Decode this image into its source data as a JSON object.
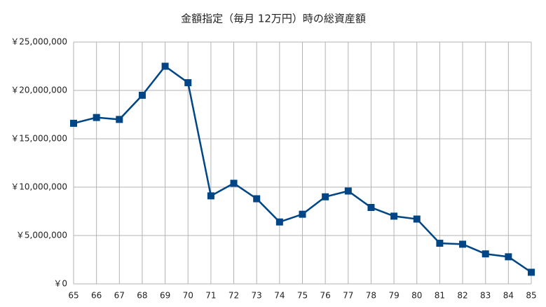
{
  "chart_data": {
    "type": "line",
    "title": "金額指定（毎月 12万円）時の総資産額",
    "x": [
      65,
      66,
      67,
      68,
      69,
      70,
      71,
      72,
      73,
      74,
      75,
      76,
      77,
      78,
      79,
      80,
      81,
      82,
      83,
      84,
      85
    ],
    "values": [
      16600000,
      17200000,
      17000000,
      19500000,
      22500000,
      20800000,
      9100000,
      10400000,
      8800000,
      6400000,
      7200000,
      9000000,
      9600000,
      7900000,
      7000000,
      6700000,
      4200000,
      4100000,
      3100000,
      2800000,
      1200000
    ],
    "color": "#004586",
    "xlim": [
      65,
      85
    ],
    "xticks": [
      65,
      66,
      67,
      68,
      69,
      70,
      71,
      72,
      73,
      74,
      75,
      76,
      77,
      78,
      79,
      80,
      81,
      82,
      83,
      84,
      85
    ],
    "ylim": [
      0,
      25000000
    ],
    "yticks": [
      {
        "value": 0,
        "label": "￥0"
      },
      {
        "value": 5000000,
        "label": "￥5,000,000"
      },
      {
        "value": 10000000,
        "label": "￥10,000,000"
      },
      {
        "value": 15000000,
        "label": "￥15,000,000"
      },
      {
        "value": 20000000,
        "label": "￥20,000,000"
      },
      {
        "value": 25000000,
        "label": "￥25,000,000"
      }
    ],
    "grid": true
  }
}
